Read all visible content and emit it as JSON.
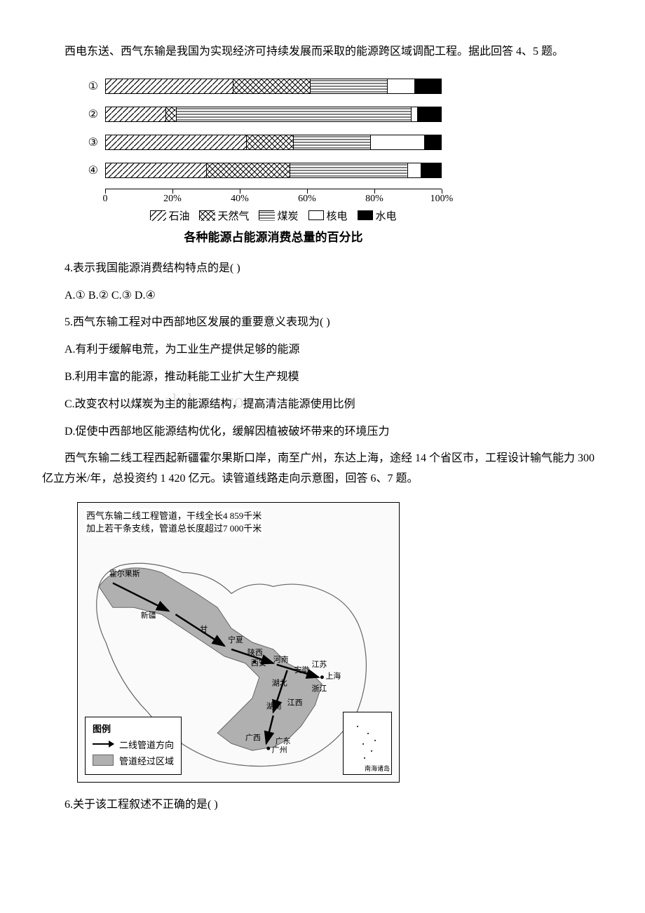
{
  "intro_q45": "西电东送、西气东输是我国为实现经济可持续发展而采取的能源跨区域调配工程。据此回答 4、5 题。",
  "chart": {
    "type": "stacked-bar-horizontal",
    "row_labels": [
      "①",
      "②",
      "③",
      "④"
    ],
    "series": [
      "石油",
      "天然气",
      "煤炭",
      "核电",
      "水电"
    ],
    "values": [
      [
        38,
        23,
        23,
        8,
        8
      ],
      [
        18,
        3,
        70,
        2,
        7
      ],
      [
        42,
        14,
        23,
        16,
        5
      ],
      [
        30,
        25,
        35,
        4,
        6
      ]
    ],
    "patterns": [
      "diag-lines",
      "crosshatch",
      "horiz-lines",
      "white",
      "black"
    ],
    "colors": {
      "border": "#000000",
      "black_fill": "#000000",
      "white_fill": "#ffffff",
      "background": "#ffffff"
    },
    "xaxis": {
      "min": 0,
      "max": 100,
      "ticks": [
        0,
        20,
        40,
        60,
        80,
        100
      ],
      "tick_labels": [
        "0",
        "20%",
        "40%",
        "60%",
        "80%",
        "100%"
      ]
    },
    "legend_prefix": [
      "☑",
      "⊠",
      "▤",
      "□",
      "■"
    ],
    "title": "各种能源占能源消费总量的百分比"
  },
  "q4": {
    "text": "4.表示我国能源消费结构特点的是(  )",
    "opts": "A.①  B.②  C.③  D.④"
  },
  "q5": {
    "text": "5.西气东输工程对中西部地区发展的重要意义表现为(  )",
    "a": "A.有利于缓解电荒，为工业生产提供足够的能源",
    "b": "B.利用丰富的能源，推动耗能工业扩大生产规模",
    "c": "C.改变农村以煤炭为主的能源结构，提高清洁能源使用比例",
    "d": "D.促使中西部地区能源结构优化，缓解因植被破坏带来的环境压力"
  },
  "intro_q67": "西气东输二线工程西起新疆霍尔果斯口岸，南至广州，东达上海，途经 14 个省区市，工程设计输气能力 300 亿立方米/年，总投资约 1 420 亿元。读管道线路走向示意图，回答 6、7 题。",
  "map": {
    "caption_l1": "西气东输二线工程管道，干线全长4 859千米",
    "caption_l2": "加上若干条支线，管道总长度超过7 000千米",
    "legend_title": "图例",
    "legend_arrow": "二线管道方向",
    "legend_region": "管道经过区域",
    "inset": "南海诸岛",
    "provinces": [
      "新疆",
      "甘",
      "宁夏",
      "陕西",
      "西安",
      "河南",
      "安徽",
      "江苏",
      "上海",
      "浙江",
      "湖北",
      "湖南",
      "江西",
      "广西",
      "广东",
      "广州"
    ],
    "start_point": "霍尔果斯",
    "region_fill": "#b0b0b0",
    "outline": "#666666",
    "line_color": "#000000"
  },
  "q6": {
    "text": "6.关于该工程叙述不正确的是(  )"
  },
  "watermark": "www.bdocx.com"
}
